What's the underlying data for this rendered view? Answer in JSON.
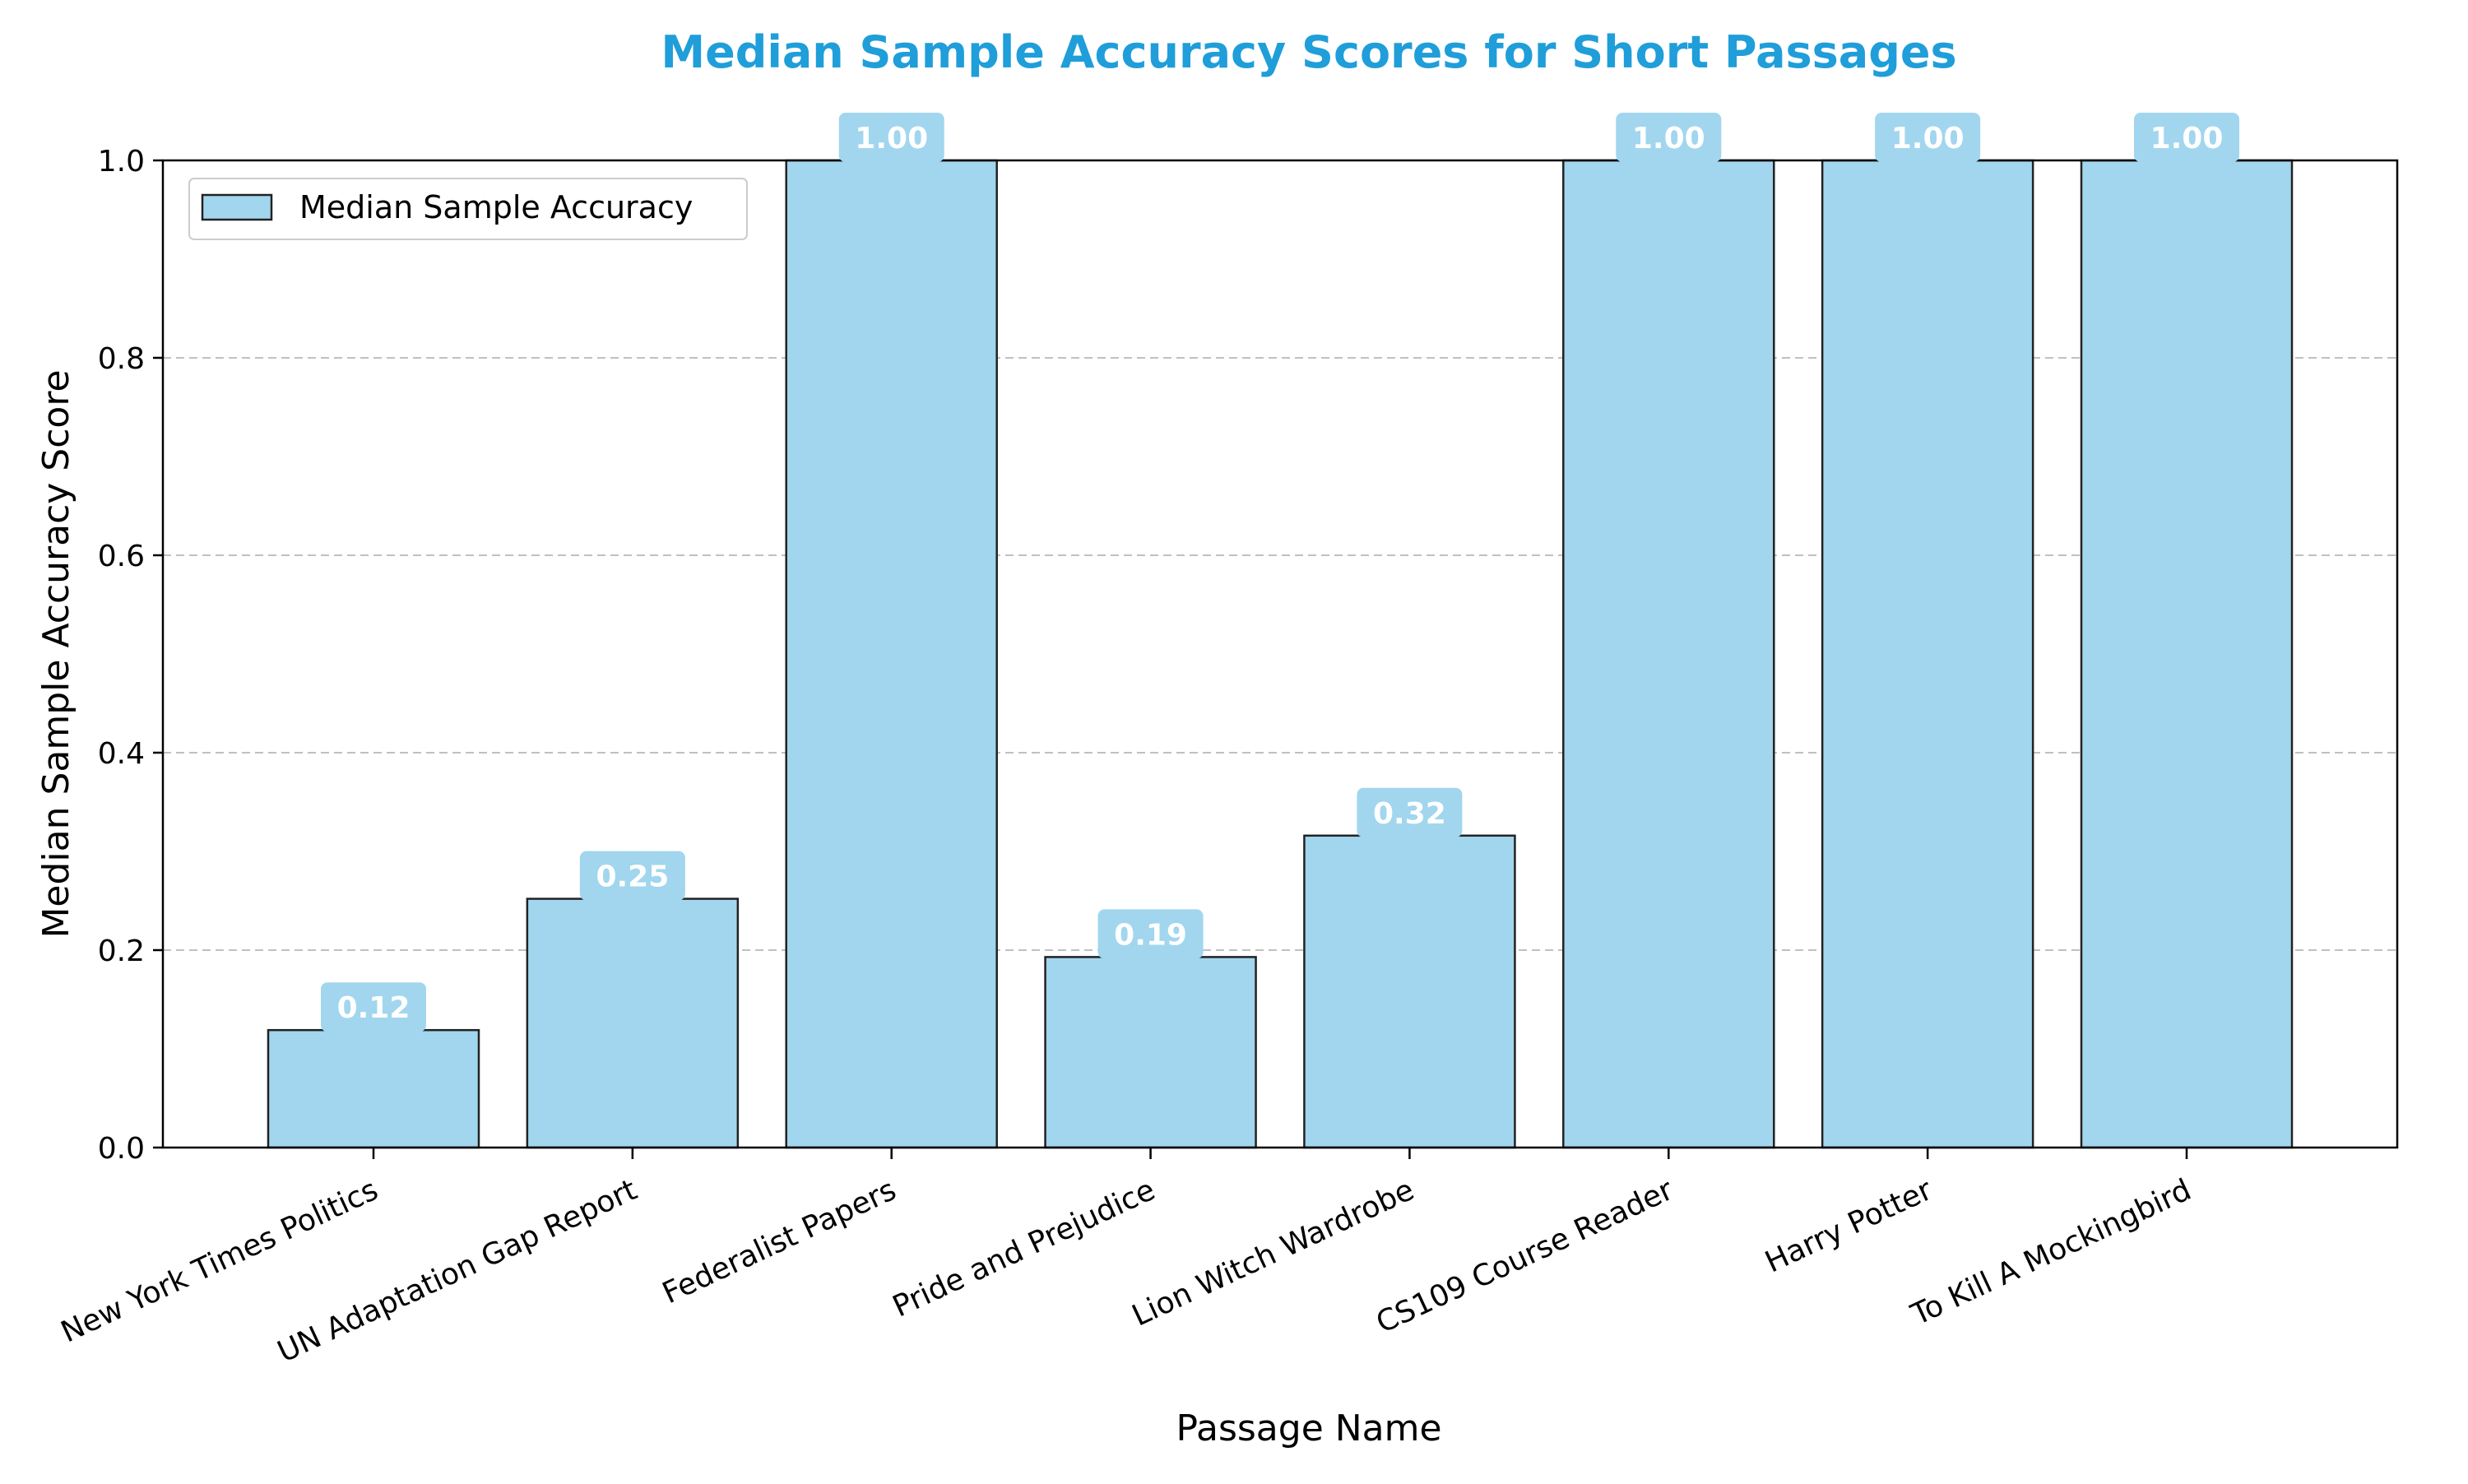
{
  "chart_data": {
    "type": "bar",
    "title": "Median Sample Accuracy Scores for Short Passages",
    "xlabel": "Passage Name",
    "ylabel": "Median Sample Accuracy Score",
    "categories": [
      "New York Times Politics",
      "UN Adaptation Gap Report",
      "Federalist Papers",
      "Pride and Prejudice",
      "Lion Witch Wardrobe",
      "CS109 Course Reader",
      "Harry Potter",
      "To Kill A Mockingbird"
    ],
    "series": [
      {
        "name": "Median Sample Accuracy",
        "values": [
          0.119,
          0.252,
          1.0,
          0.193,
          0.316,
          1.0,
          1.0,
          1.0
        ],
        "value_labels": [
          "0.12",
          "0.25",
          "1.00",
          "0.19",
          "0.32",
          "1.00",
          "1.00",
          "1.00"
        ]
      }
    ],
    "ylim": [
      0,
      1.0
    ],
    "yticks": [
      "0.0",
      "0.2",
      "0.4",
      "0.6",
      "0.8",
      "1.0"
    ],
    "grid": "horizontal dashed",
    "legend_position": "upper-left",
    "colors": {
      "bar_fill": "#a1d6ee",
      "bar_edge": "#222222",
      "label_box": "#a1d6ee",
      "label_text": "#ffffff",
      "title": "#1f9ed9",
      "grid": "#c0c0c0"
    }
  }
}
